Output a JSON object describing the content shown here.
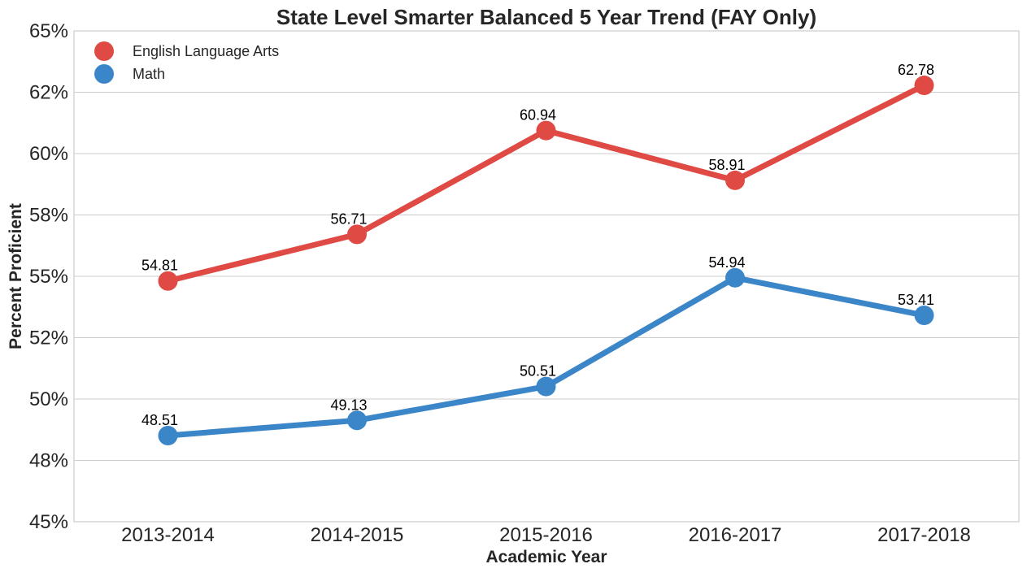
{
  "chart_data": {
    "type": "line",
    "title": "State Level Smarter Balanced 5 Year Trend (FAY Only)",
    "xlabel": "Academic Year",
    "ylabel": "Percent Proficient",
    "categories": [
      "2013-2014",
      "2014-2015",
      "2015-2016",
      "2016-2017",
      "2017-2018"
    ],
    "ylim": [
      45,
      65
    ],
    "yticks": [
      45,
      47.5,
      50,
      52.5,
      55,
      57.5,
      60,
      62.5,
      65
    ],
    "ytick_labels": [
      "45%",
      "48%",
      "50%",
      "52%",
      "55%",
      "58%",
      "60%",
      "62%",
      "65%"
    ],
    "grid": "horizontal",
    "legend_position": "top-left",
    "series": [
      {
        "name": "English Language Arts",
        "color": "#e04a45",
        "values": [
          54.81,
          56.71,
          60.94,
          58.91,
          62.78
        ],
        "labels": [
          "54.81",
          "56.71",
          "60.94",
          "58.91",
          "62.78"
        ]
      },
      {
        "name": "Math",
        "color": "#3b86c8",
        "values": [
          48.51,
          49.13,
          50.51,
          54.94,
          53.41
        ],
        "labels": [
          "48.51",
          "49.13",
          "50.51",
          "54.94",
          "53.41"
        ]
      }
    ]
  }
}
